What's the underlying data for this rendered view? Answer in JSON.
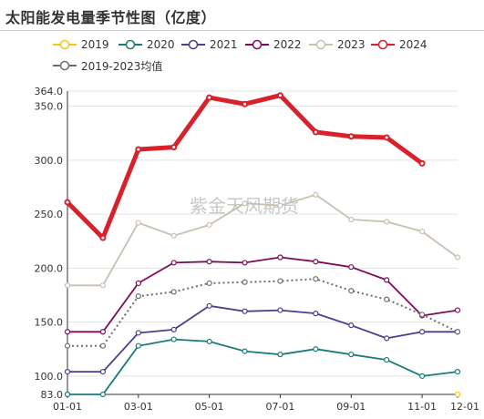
{
  "title": "太阳能发电量季节性图（亿度）",
  "watermark": "紫金天风期货",
  "legend": [
    {
      "label": "2019",
      "color": "#f5c518"
    },
    {
      "label": "2020",
      "color": "#1b7b7b"
    },
    {
      "label": "2021",
      "color": "#4b3f8f"
    },
    {
      "label": "2022",
      "color": "#7d0d57"
    },
    {
      "label": "2023",
      "color": "#c9bfb2"
    },
    {
      "label": "2024",
      "color": "#d9212c"
    },
    {
      "label": "2019-2023均值",
      "color": "#6e6e6e"
    }
  ],
  "chart_data": {
    "type": "line",
    "title": "太阳能发电量季节性图（亿度）",
    "x": [
      "01-01",
      "02-01",
      "03-01",
      "04-01",
      "05-01",
      "06-01",
      "07-01",
      "08-01",
      "09-01",
      "10-01",
      "11-01",
      "12-01"
    ],
    "x_tick_labels": [
      "01-01",
      "03-01",
      "05-01",
      "07-01",
      "09-01",
      "11-01",
      "12-01"
    ],
    "y_tick_labels": [
      "83.0",
      "100.0",
      "150.0",
      "200.0",
      "250.0",
      "300.0",
      "350.0",
      "364.0"
    ],
    "ylim": [
      83,
      364
    ],
    "grid": "horizontal",
    "legend_position": "top-left",
    "series": [
      {
        "name": "2019",
        "color": "#f5c518",
        "line_width": 1.5,
        "dashed": false,
        "values": [
          null,
          null,
          null,
          null,
          null,
          null,
          null,
          null,
          null,
          null,
          null,
          83
        ]
      },
      {
        "name": "2020",
        "color": "#1b7b7b",
        "line_width": 1.8,
        "dashed": false,
        "values": [
          83,
          83,
          128,
          134,
          132,
          123,
          120,
          125,
          120,
          115,
          100,
          104
        ]
      },
      {
        "name": "2021",
        "color": "#4b3f8f",
        "line_width": 1.8,
        "dashed": false,
        "values": [
          104,
          104,
          140,
          143,
          165,
          160,
          161,
          158,
          147,
          135,
          141,
          141
        ]
      },
      {
        "name": "2022",
        "color": "#7d0d57",
        "line_width": 1.8,
        "dashed": false,
        "values": [
          141,
          141,
          186,
          205,
          206,
          205,
          210,
          206,
          201,
          189,
          156,
          161
        ]
      },
      {
        "name": "2023",
        "color": "#c9bfb2",
        "line_width": 1.8,
        "dashed": false,
        "values": [
          184,
          184,
          242,
          230,
          240,
          260,
          258,
          268,
          245,
          243,
          234,
          210
        ]
      },
      {
        "name": "2024",
        "color": "#d9212c",
        "line_width": 5,
        "dashed": false,
        "values": [
          261,
          228,
          310,
          312,
          358,
          352,
          360,
          326,
          322,
          321,
          297,
          null
        ]
      },
      {
        "name": "2019-2023均值",
        "color": "#6e6e6e",
        "line_width": 2,
        "dashed": true,
        "values": [
          128,
          128,
          174,
          178,
          186,
          187,
          188,
          190,
          179,
          171,
          157,
          141
        ]
      }
    ]
  }
}
